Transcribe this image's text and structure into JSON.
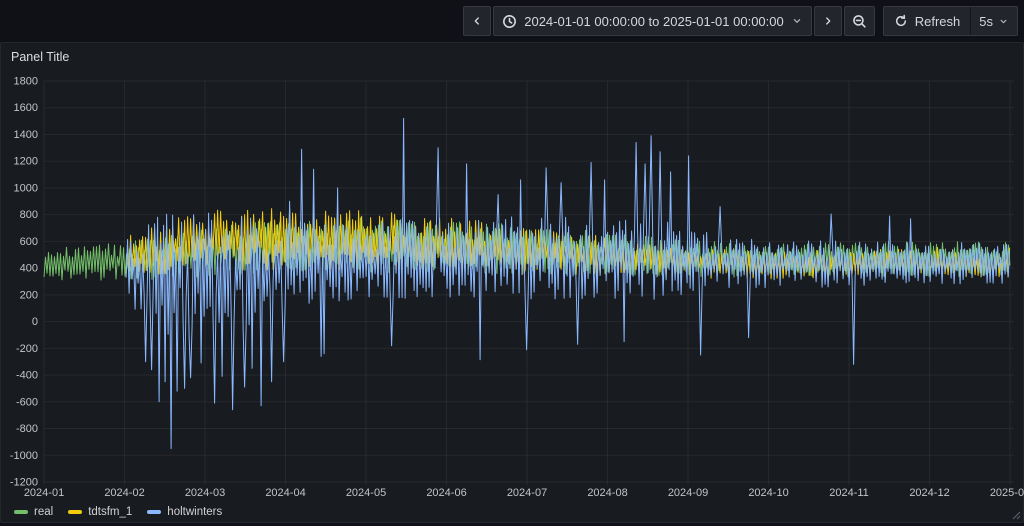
{
  "toolbar": {
    "time_range_label": "2024-01-01 00:00:00 to 2025-01-01 00:00:00",
    "refresh_label": "Refresh",
    "refresh_interval": "5s"
  },
  "panel": {
    "title": "Panel Title"
  },
  "legend": {
    "items": [
      {
        "label": "real",
        "color": "#73BF69"
      },
      {
        "label": "tdtsfm_1",
        "color": "#F2CC0C"
      },
      {
        "label": "holtwinters",
        "color": "#8AB8FF"
      }
    ]
  },
  "chart_data": {
    "type": "line",
    "title": "Panel Title",
    "grid": true,
    "legend_position": "bottom-left",
    "x_axis": {
      "start": "2024-01-01 00:00:00",
      "end": "2025-01-01 00:00:00",
      "ticks": [
        "2024-01",
        "2024-02",
        "2024-03",
        "2024-04",
        "2024-05",
        "2024-06",
        "2024-07",
        "2024-08",
        "2024-09",
        "2024-10",
        "2024-11",
        "2024-12",
        "2025-01"
      ]
    },
    "y_axis": {
      "min": -1200,
      "max": 1800,
      "tick_step": 200,
      "ticks": [
        1800,
        1600,
        1400,
        1200,
        1000,
        800,
        600,
        400,
        200,
        0,
        -200,
        -400,
        -600,
        -800,
        -1000,
        -1200
      ]
    },
    "noise_seed": 1337,
    "envelope_format": "[year_fraction, mean, amplitude] control points, linearly interpolated",
    "spike_format": "[year_fraction, value]",
    "series": [
      {
        "name": "real",
        "color": "#73BF69",
        "start_frac": 0.0,
        "envelope": [
          [
            0.0,
            430,
            120
          ],
          [
            0.05,
            440,
            130
          ],
          [
            0.085,
            455,
            150
          ],
          [
            0.17,
            520,
            180
          ],
          [
            0.25,
            570,
            210
          ],
          [
            0.33,
            580,
            210
          ],
          [
            0.42,
            560,
            200
          ],
          [
            0.5,
            540,
            180
          ],
          [
            0.58,
            510,
            160
          ],
          [
            0.67,
            470,
            140
          ],
          [
            0.75,
            455,
            125
          ],
          [
            0.83,
            465,
            130
          ],
          [
            0.92,
            470,
            130
          ],
          [
            1.0,
            465,
            130
          ]
        ],
        "spikes_up": [],
        "spikes_down": []
      },
      {
        "name": "tdtsfm_1",
        "color": "#F2CC0C",
        "start_frac": 0.085,
        "envelope": [
          [
            0.085,
            480,
            170
          ],
          [
            0.13,
            560,
            200
          ],
          [
            0.17,
            610,
            225
          ],
          [
            0.25,
            620,
            230
          ],
          [
            0.33,
            600,
            230
          ],
          [
            0.42,
            575,
            210
          ],
          [
            0.5,
            530,
            180
          ],
          [
            0.58,
            495,
            150
          ],
          [
            0.67,
            450,
            125
          ],
          [
            0.75,
            430,
            110
          ],
          [
            0.83,
            430,
            110
          ],
          [
            0.92,
            440,
            115
          ],
          [
            1.0,
            440,
            115
          ]
        ],
        "spikes_up": [],
        "spikes_down": []
      },
      {
        "name": "holtwinters",
        "color": "#8AB8FF",
        "start_frac": 0.085,
        "envelope": [
          [
            0.085,
            400,
            260
          ],
          [
            0.12,
            360,
            450
          ],
          [
            0.17,
            350,
            470
          ],
          [
            0.21,
            370,
            430
          ],
          [
            0.25,
            430,
            310
          ],
          [
            0.33,
            460,
            290
          ],
          [
            0.42,
            480,
            300
          ],
          [
            0.5,
            480,
            310
          ],
          [
            0.58,
            470,
            300
          ],
          [
            0.63,
            480,
            330
          ],
          [
            0.67,
            450,
            230
          ],
          [
            0.75,
            435,
            180
          ],
          [
            0.83,
            430,
            170
          ],
          [
            0.92,
            435,
            155
          ],
          [
            1.0,
            440,
            155
          ]
        ],
        "spikes_up": [
          [
            0.255,
            900
          ],
          [
            0.267,
            1290
          ],
          [
            0.279,
            1140
          ],
          [
            0.304,
            1000
          ],
          [
            0.372,
            1520
          ],
          [
            0.408,
            1300
          ],
          [
            0.437,
            1180
          ],
          [
            0.47,
            950
          ],
          [
            0.494,
            1060
          ],
          [
            0.52,
            1150
          ],
          [
            0.535,
            1040
          ],
          [
            0.566,
            1190
          ],
          [
            0.581,
            1060
          ],
          [
            0.613,
            1340
          ],
          [
            0.622,
            1180
          ],
          [
            0.629,
            1390
          ],
          [
            0.638,
            1270
          ],
          [
            0.648,
            1120
          ],
          [
            0.668,
            1240
          ],
          [
            0.7,
            860
          ],
          [
            0.815,
            805
          ],
          [
            0.875,
            790
          ],
          [
            0.897,
            770
          ]
        ],
        "spikes_down": [
          [
            0.105,
            -300
          ],
          [
            0.111,
            -360
          ],
          [
            0.119,
            -600
          ],
          [
            0.126,
            -450
          ],
          [
            0.131,
            -950
          ],
          [
            0.138,
            -520
          ],
          [
            0.145,
            -500
          ],
          [
            0.152,
            -420
          ],
          [
            0.163,
            -310
          ],
          [
            0.176,
            -610
          ],
          [
            0.185,
            -410
          ],
          [
            0.196,
            -660
          ],
          [
            0.207,
            -490
          ],
          [
            0.216,
            -350
          ],
          [
            0.225,
            -630
          ],
          [
            0.236,
            -450
          ],
          [
            0.248,
            -300
          ],
          [
            0.287,
            -260
          ],
          [
            0.29,
            -240
          ],
          [
            0.36,
            -180
          ],
          [
            0.452,
            -285
          ],
          [
            0.5,
            -210
          ],
          [
            0.553,
            -170
          ],
          [
            0.6,
            -150
          ],
          [
            0.68,
            -250
          ],
          [
            0.73,
            -120
          ],
          [
            0.838,
            -320
          ]
        ]
      }
    ]
  }
}
